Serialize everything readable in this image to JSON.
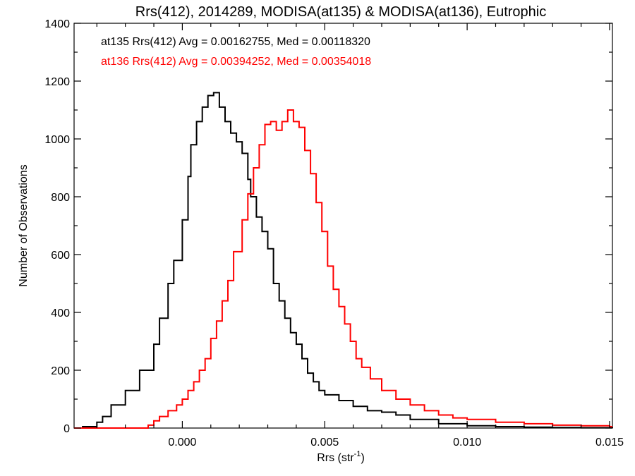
{
  "chart_data": {
    "type": "line",
    "title": "Rrs(412), 2014289, MODISA(at135) & MODISA(at136), Eutrophic",
    "xlabel": "Rrs (str",
    "xlabel_superscript": "-1",
    "xlabel_suffix": ")",
    "ylabel": "Number of Observations",
    "xlim": [
      -0.0038,
      0.0151
    ],
    "ylim": [
      0,
      1400
    ],
    "x_ticks": [
      0.0,
      0.005,
      0.01,
      0.015
    ],
    "x_tick_labels": [
      "0.000",
      "0.005",
      "0.010",
      "0.015"
    ],
    "y_ticks": [
      0,
      200,
      400,
      600,
      800,
      1000,
      1200,
      1400
    ],
    "y_tick_labels": [
      "0",
      "200",
      "400",
      "600",
      "800",
      "1000",
      "1200",
      "1400"
    ],
    "grid": false,
    "annotations": [
      {
        "text": "at135 Rrs(412) Avg = 0.00162755, Med = 0.00118320",
        "color": "#000000"
      },
      {
        "text": "at136 Rrs(412) Avg = 0.00394252, Med = 0.00354018",
        "color": "#ff0000"
      }
    ],
    "series": [
      {
        "color": "#000000",
        "style": "step",
        "points": [
          [
            -0.0038,
            0
          ],
          [
            -0.0035,
            5
          ],
          [
            -0.003,
            20
          ],
          [
            -0.0028,
            40
          ],
          [
            -0.0025,
            80
          ],
          [
            -0.002,
            130
          ],
          [
            -0.0015,
            200
          ],
          [
            -0.001,
            290
          ],
          [
            -0.0008,
            380
          ],
          [
            -0.0005,
            500
          ],
          [
            -0.0003,
            580
          ],
          [
            0.0,
            720
          ],
          [
            0.0002,
            870
          ],
          [
            0.0003,
            980
          ],
          [
            0.0005,
            1060
          ],
          [
            0.0007,
            1110
          ],
          [
            0.0009,
            1150
          ],
          [
            0.0011,
            1160
          ],
          [
            0.0013,
            1110
          ],
          [
            0.0015,
            1060
          ],
          [
            0.0017,
            1020
          ],
          [
            0.0019,
            990
          ],
          [
            0.0021,
            950
          ],
          [
            0.0023,
            860
          ],
          [
            0.0024,
            800
          ],
          [
            0.0026,
            730
          ],
          [
            0.0028,
            680
          ],
          [
            0.003,
            620
          ],
          [
            0.0032,
            500
          ],
          [
            0.0034,
            440
          ],
          [
            0.0036,
            380
          ],
          [
            0.0038,
            330
          ],
          [
            0.004,
            290
          ],
          [
            0.0042,
            240
          ],
          [
            0.0044,
            190
          ],
          [
            0.0046,
            160
          ],
          [
            0.0048,
            130
          ],
          [
            0.005,
            115
          ],
          [
            0.0055,
            95
          ],
          [
            0.006,
            75
          ],
          [
            0.0065,
            60
          ],
          [
            0.007,
            55
          ],
          [
            0.0075,
            45
          ],
          [
            0.008,
            30
          ],
          [
            0.009,
            15
          ],
          [
            0.01,
            8
          ],
          [
            0.011,
            5
          ],
          [
            0.012,
            3
          ],
          [
            0.013,
            2
          ],
          [
            0.014,
            1
          ],
          [
            0.0151,
            0
          ]
        ]
      },
      {
        "color": "#ff0000",
        "style": "step",
        "points": [
          [
            -0.0038,
            0
          ],
          [
            -0.0015,
            0
          ],
          [
            -0.0012,
            10
          ],
          [
            -0.001,
            25
          ],
          [
            -0.0008,
            40
          ],
          [
            -0.0005,
            60
          ],
          [
            -0.0002,
            80
          ],
          [
            0.0,
            100
          ],
          [
            0.0002,
            130
          ],
          [
            0.0004,
            160
          ],
          [
            0.0006,
            200
          ],
          [
            0.0008,
            240
          ],
          [
            0.001,
            310
          ],
          [
            0.0012,
            370
          ],
          [
            0.0014,
            440
          ],
          [
            0.0016,
            510
          ],
          [
            0.0018,
            610
          ],
          [
            0.0021,
            720
          ],
          [
            0.0023,
            810
          ],
          [
            0.0025,
            900
          ],
          [
            0.0027,
            980
          ],
          [
            0.0029,
            1050
          ],
          [
            0.0031,
            1060
          ],
          [
            0.0033,
            1030
          ],
          [
            0.0035,
            1060
          ],
          [
            0.0037,
            1100
          ],
          [
            0.0039,
            1060
          ],
          [
            0.0041,
            1040
          ],
          [
            0.0043,
            960
          ],
          [
            0.0045,
            880
          ],
          [
            0.0047,
            780
          ],
          [
            0.0049,
            680
          ],
          [
            0.0051,
            560
          ],
          [
            0.0053,
            480
          ],
          [
            0.0055,
            420
          ],
          [
            0.0057,
            360
          ],
          [
            0.0059,
            300
          ],
          [
            0.0061,
            240
          ],
          [
            0.0063,
            210
          ],
          [
            0.0066,
            170
          ],
          [
            0.007,
            130
          ],
          [
            0.0075,
            100
          ],
          [
            0.008,
            80
          ],
          [
            0.0085,
            60
          ],
          [
            0.009,
            45
          ],
          [
            0.0095,
            35
          ],
          [
            0.01,
            30
          ],
          [
            0.011,
            20
          ],
          [
            0.012,
            15
          ],
          [
            0.013,
            10
          ],
          [
            0.014,
            8
          ],
          [
            0.015,
            5
          ],
          [
            0.0151,
            5
          ]
        ]
      }
    ]
  }
}
